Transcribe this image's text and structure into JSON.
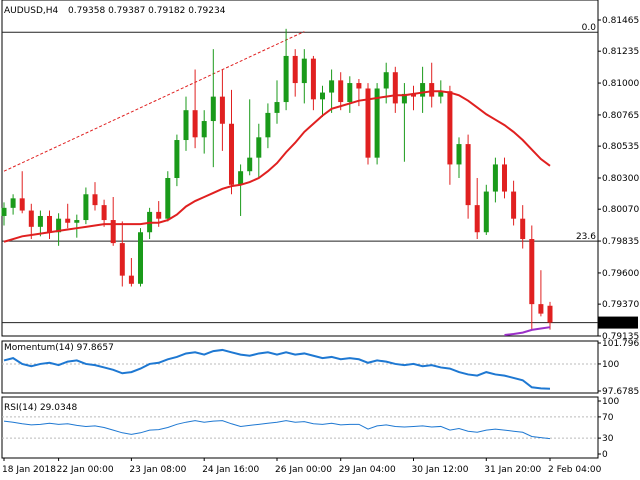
{
  "header": {
    "symbol": "AUDUSD,H4",
    "ohlc": "0.79358 0.79387 0.79182 0.79234"
  },
  "chart_data": {
    "type": "candlestick",
    "main": {
      "ylim": [
        0.79135,
        0.81465
      ],
      "y_ticks": [
        "0.81465",
        "0.81235",
        "0.81000",
        "0.80765",
        "0.80535",
        "0.80300",
        "0.80070",
        "0.79835",
        "0.79600",
        "0.79370",
        "0.79135"
      ],
      "current_price_label": "0.79234",
      "level_labels": [
        {
          "text": "0.0",
          "price": 0.81375
        },
        {
          "text": "23.6",
          "price": 0.79835
        }
      ],
      "fib_levels": [
        0.81375,
        0.79835,
        0.79234
      ],
      "trendline": {
        "from_index": 0,
        "from_price": 0.8035,
        "to_index": 33,
        "to_price": 0.8138
      },
      "candles": [
        {
          "o": 0.8002,
          "h": 0.8012,
          "l": 0.7995,
          "c": 0.8008
        },
        {
          "o": 0.8008,
          "h": 0.8018,
          "l": 0.8003,
          "c": 0.8015
        },
        {
          "o": 0.8015,
          "h": 0.8035,
          "l": 0.8004,
          "c": 0.8006
        },
        {
          "o": 0.8006,
          "h": 0.8011,
          "l": 0.7985,
          "c": 0.7994
        },
        {
          "o": 0.7994,
          "h": 0.8006,
          "l": 0.7987,
          "c": 0.8002
        },
        {
          "o": 0.8002,
          "h": 0.8006,
          "l": 0.7985,
          "c": 0.799
        },
        {
          "o": 0.799,
          "h": 0.8004,
          "l": 0.798,
          "c": 0.8
        },
        {
          "o": 0.8,
          "h": 0.8011,
          "l": 0.7993,
          "c": 0.7997
        },
        {
          "o": 0.7997,
          "h": 0.8003,
          "l": 0.7986,
          "c": 0.7999
        },
        {
          "o": 0.7999,
          "h": 0.8023,
          "l": 0.7996,
          "c": 0.8018
        },
        {
          "o": 0.8018,
          "h": 0.8027,
          "l": 0.8006,
          "c": 0.801
        },
        {
          "o": 0.801,
          "h": 0.8014,
          "l": 0.7994,
          "c": 0.7999
        },
        {
          "o": 0.7999,
          "h": 0.8016,
          "l": 0.798,
          "c": 0.7982
        },
        {
          "o": 0.7982,
          "h": 0.7998,
          "l": 0.795,
          "c": 0.7958
        },
        {
          "o": 0.7958,
          "h": 0.7971,
          "l": 0.795,
          "c": 0.7952
        },
        {
          "o": 0.7952,
          "h": 0.7993,
          "l": 0.795,
          "c": 0.799
        },
        {
          "o": 0.799,
          "h": 0.8008,
          "l": 0.7985,
          "c": 0.8005
        },
        {
          "o": 0.8005,
          "h": 0.8013,
          "l": 0.7994,
          "c": 0.8
        },
        {
          "o": 0.8,
          "h": 0.8035,
          "l": 0.7998,
          "c": 0.803
        },
        {
          "o": 0.803,
          "h": 0.8062,
          "l": 0.8024,
          "c": 0.8058
        },
        {
          "o": 0.8058,
          "h": 0.809,
          "l": 0.805,
          "c": 0.808
        },
        {
          "o": 0.808,
          "h": 0.811,
          "l": 0.8052,
          "c": 0.806
        },
        {
          "o": 0.806,
          "h": 0.808,
          "l": 0.8048,
          "c": 0.8072
        },
        {
          "o": 0.8072,
          "h": 0.8125,
          "l": 0.8038,
          "c": 0.809
        },
        {
          "o": 0.809,
          "h": 0.811,
          "l": 0.805,
          "c": 0.807
        },
        {
          "o": 0.807,
          "h": 0.8095,
          "l": 0.8018,
          "c": 0.8025
        },
        {
          "o": 0.8025,
          "h": 0.804,
          "l": 0.8002,
          "c": 0.8035
        },
        {
          "o": 0.8035,
          "h": 0.8088,
          "l": 0.8032,
          "c": 0.8045
        },
        {
          "o": 0.8045,
          "h": 0.807,
          "l": 0.803,
          "c": 0.806
        },
        {
          "o": 0.806,
          "h": 0.8085,
          "l": 0.8052,
          "c": 0.8078
        },
        {
          "o": 0.8078,
          "h": 0.8102,
          "l": 0.807,
          "c": 0.8086
        },
        {
          "o": 0.8086,
          "h": 0.814,
          "l": 0.808,
          "c": 0.812
        },
        {
          "o": 0.812,
          "h": 0.8125,
          "l": 0.809,
          "c": 0.81
        },
        {
          "o": 0.81,
          "h": 0.8125,
          "l": 0.8085,
          "c": 0.8118
        },
        {
          "o": 0.8118,
          "h": 0.812,
          "l": 0.808,
          "c": 0.8088
        },
        {
          "o": 0.8088,
          "h": 0.8098,
          "l": 0.8075,
          "c": 0.8093
        },
        {
          "o": 0.8093,
          "h": 0.811,
          "l": 0.8078,
          "c": 0.8102
        },
        {
          "o": 0.8102,
          "h": 0.8108,
          "l": 0.808,
          "c": 0.8086
        },
        {
          "o": 0.8086,
          "h": 0.8105,
          "l": 0.8078,
          "c": 0.81
        },
        {
          "o": 0.81,
          "h": 0.8103,
          "l": 0.8083,
          "c": 0.8096
        },
        {
          "o": 0.8096,
          "h": 0.81,
          "l": 0.804,
          "c": 0.8045
        },
        {
          "o": 0.8045,
          "h": 0.81,
          "l": 0.804,
          "c": 0.8096
        },
        {
          "o": 0.8096,
          "h": 0.8115,
          "l": 0.8085,
          "c": 0.8108
        },
        {
          "o": 0.8108,
          "h": 0.8112,
          "l": 0.8078,
          "c": 0.8085
        },
        {
          "o": 0.8085,
          "h": 0.81,
          "l": 0.8042,
          "c": 0.8092
        },
        {
          "o": 0.8092,
          "h": 0.8098,
          "l": 0.808,
          "c": 0.809
        },
        {
          "o": 0.809,
          "h": 0.8112,
          "l": 0.8078,
          "c": 0.81
        },
        {
          "o": 0.81,
          "h": 0.8115,
          "l": 0.8082,
          "c": 0.809
        },
        {
          "o": 0.809,
          "h": 0.8102,
          "l": 0.8085,
          "c": 0.8094
        },
        {
          "o": 0.8094,
          "h": 0.8098,
          "l": 0.8025,
          "c": 0.804
        },
        {
          "o": 0.804,
          "h": 0.806,
          "l": 0.803,
          "c": 0.8055
        },
        {
          "o": 0.8055,
          "h": 0.8062,
          "l": 0.8,
          "c": 0.801
        },
        {
          "o": 0.801,
          "h": 0.803,
          "l": 0.7985,
          "c": 0.799
        },
        {
          "o": 0.799,
          "h": 0.8025,
          "l": 0.7988,
          "c": 0.802
        },
        {
          "o": 0.802,
          "h": 0.8045,
          "l": 0.8012,
          "c": 0.804
        },
        {
          "o": 0.804,
          "h": 0.8045,
          "l": 0.8015,
          "c": 0.802
        },
        {
          "o": 0.802,
          "h": 0.8028,
          "l": 0.7995,
          "c": 0.8
        },
        {
          "o": 0.8,
          "h": 0.801,
          "l": 0.7978,
          "c": 0.7985
        },
        {
          "o": 0.7985,
          "h": 0.7995,
          "l": 0.7918,
          "c": 0.7937
        },
        {
          "o": 0.7937,
          "h": 0.7962,
          "l": 0.7928,
          "c": 0.793
        },
        {
          "o": 0.79358,
          "h": 0.79387,
          "l": 0.79182,
          "c": 0.79234
        }
      ],
      "sma": [
        0.7983,
        0.7985,
        0.7987,
        0.7988,
        0.7989,
        0.799,
        0.7991,
        0.7992,
        0.7993,
        0.7994,
        0.7995,
        0.7996,
        0.7996,
        0.7996,
        0.7996,
        0.7996,
        0.7997,
        0.7997,
        0.7999,
        0.8003,
        0.8009,
        0.8013,
        0.8016,
        0.8019,
        0.8022,
        0.8024,
        0.8025,
        0.8027,
        0.803,
        0.8035,
        0.8041,
        0.8049,
        0.8056,
        0.8064,
        0.807,
        0.8076,
        0.8081,
        0.8083,
        0.8085,
        0.8087,
        0.8088,
        0.8089,
        0.809,
        0.8091,
        0.8091,
        0.8092,
        0.8093,
        0.8094,
        0.8094,
        0.8093,
        0.8091,
        0.8087,
        0.8082,
        0.8077,
        0.8073,
        0.8069,
        0.8064,
        0.8058,
        0.8051,
        0.8044,
        0.8039
      ],
      "purple_line": [
        null,
        null,
        null,
        null,
        null,
        null,
        null,
        null,
        null,
        null,
        null,
        null,
        null,
        null,
        null,
        null,
        null,
        null,
        null,
        null,
        null,
        null,
        null,
        null,
        null,
        null,
        null,
        null,
        null,
        null,
        null,
        null,
        null,
        null,
        null,
        null,
        null,
        null,
        null,
        null,
        null,
        null,
        null,
        null,
        null,
        null,
        null,
        null,
        null,
        null,
        null,
        null,
        null,
        null,
        null,
        0.7914,
        0.7915,
        0.7916,
        0.7918,
        0.7919,
        0.792
      ]
    },
    "momentum": {
      "label": "Momentum(14) 97.8657",
      "ylim": [
        97.6785,
        101.7965
      ],
      "y_ticks": [
        "101.7965",
        "100",
        "97.6785"
      ],
      "guide": 100,
      "values": [
        100.3,
        100.5,
        100.0,
        99.8,
        100.0,
        100.1,
        99.9,
        100.2,
        100.3,
        100.0,
        99.9,
        99.7,
        99.5,
        99.2,
        99.3,
        99.6,
        100.0,
        100.1,
        100.4,
        100.6,
        100.9,
        101.0,
        100.8,
        101.1,
        101.2,
        101.0,
        100.8,
        100.7,
        100.9,
        101.0,
        100.8,
        101.0,
        100.8,
        100.9,
        100.7,
        100.5,
        100.6,
        100.4,
        100.5,
        100.4,
        100.1,
        100.3,
        100.2,
        100.0,
        99.9,
        100.0,
        99.8,
        99.9,
        99.7,
        99.6,
        99.3,
        99.1,
        99.0,
        99.3,
        99.1,
        99.0,
        98.8,
        98.6,
        98.0,
        97.9,
        97.87
      ]
    },
    "rsi": {
      "label": "RSI(14) 29.0348",
      "ylim": [
        0,
        100
      ],
      "y_ticks": [
        "100",
        "70",
        "30",
        "0"
      ],
      "guides": [
        70,
        30
      ],
      "values": [
        62,
        60,
        57,
        55,
        56,
        58,
        56,
        57,
        54,
        52,
        53,
        50,
        45,
        40,
        37,
        40,
        45,
        46,
        50,
        56,
        60,
        63,
        60,
        62,
        63,
        57,
        52,
        54,
        56,
        58,
        60,
        63,
        60,
        61,
        57,
        56,
        58,
        55,
        56,
        56,
        47,
        53,
        55,
        52,
        51,
        52,
        53,
        51,
        52,
        45,
        48,
        43,
        41,
        45,
        47,
        45,
        43,
        41,
        33,
        31,
        29.03
      ]
    },
    "x_ticks": [
      {
        "label": "18 Jan 2018",
        "index": 0
      },
      {
        "label": "22 Jan 00:00",
        "index": 6
      },
      {
        "label": "23 Jan 08:00",
        "index": 14
      },
      {
        "label": "24 Jan 16:00",
        "index": 22
      },
      {
        "label": "26 Jan 00:00",
        "index": 30
      },
      {
        "label": "29 Jan 04:00",
        "index": 37
      },
      {
        "label": "30 Jan 12:00",
        "index": 45
      },
      {
        "label": "31 Jan 20:00",
        "index": 53
      },
      {
        "label": "2 Feb 04:00",
        "index": 60
      }
    ],
    "colors": {
      "bull": "#1a9a1a",
      "bear": "#e02020",
      "sma": "#e02020",
      "trendline": "#e02020",
      "purple": "#9b30c8",
      "momentum": "#1e78d2",
      "rsi": "#1e78d2",
      "level": "#222222"
    }
  }
}
